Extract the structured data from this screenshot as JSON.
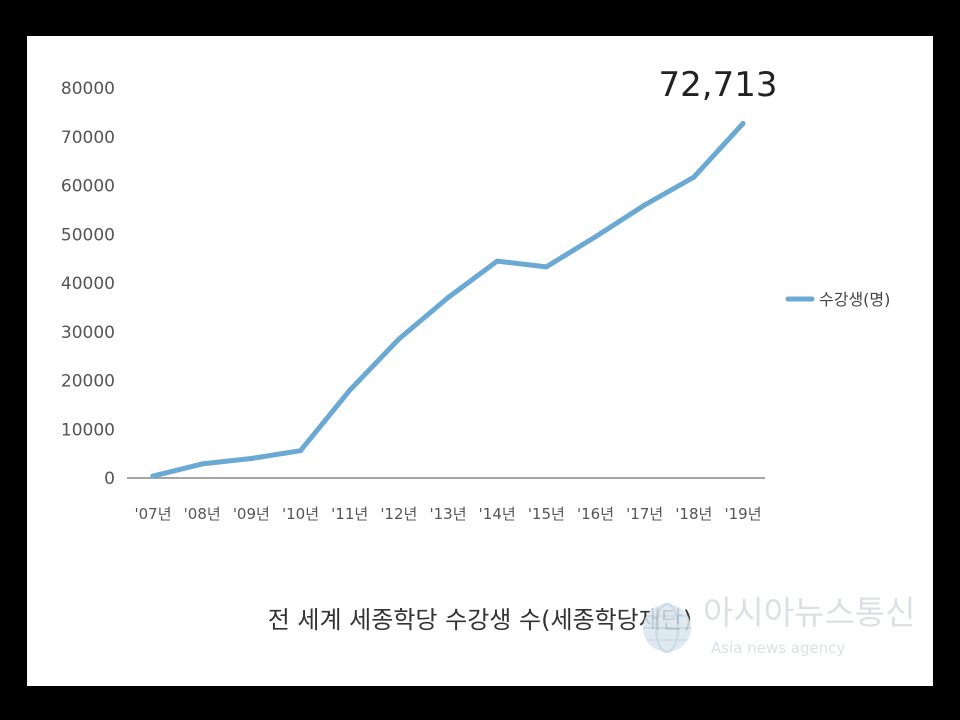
{
  "chart_data": {
    "type": "line",
    "categories": [
      "'07년",
      "'08년",
      "'09년",
      "'10년",
      "'11년",
      "'12년",
      "'13년",
      "'14년",
      "'15년",
      "'16년",
      "'17년",
      "'18년",
      "'19년"
    ],
    "series": [
      {
        "name": "수강생(명)",
        "values": [
          400,
          2900,
          4000,
          5600,
          18000,
          28500,
          37000,
          44500,
          43300,
          49500,
          56000,
          61700,
          72713
        ],
        "color": "#6aa9d3"
      }
    ],
    "yticks": [
      0,
      10000,
      20000,
      30000,
      40000,
      50000,
      60000,
      70000,
      80000
    ],
    "ylim": [
      0,
      80000
    ],
    "annotation": "72,713",
    "legend_position": "right",
    "grid": false
  },
  "caption": "전 세계 세종학당 수강생 수(세종학당재단)",
  "watermark": {
    "title": "아시아뉴스통신",
    "subtitle": "Asia news agency",
    "icon": "globe-icon"
  },
  "colors": {
    "line": "#6aa9d3",
    "axis": "#888888",
    "background": "#ffffff",
    "frame": "#000000"
  }
}
